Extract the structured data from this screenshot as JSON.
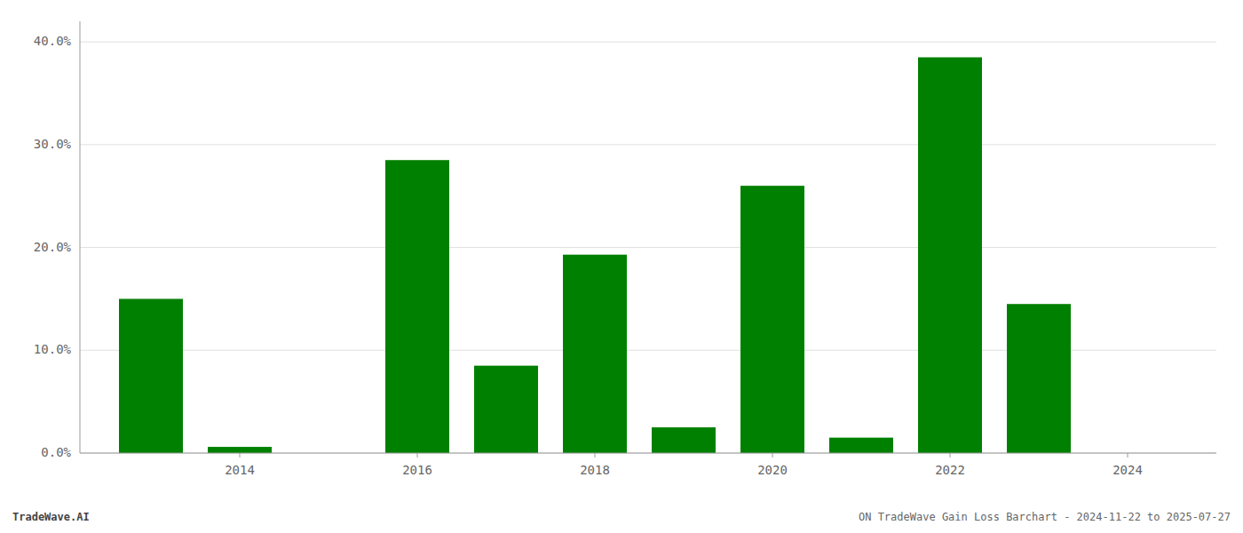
{
  "chart_data": {
    "type": "bar",
    "x": [
      2013,
      2014,
      2015,
      2016,
      2017,
      2018,
      2019,
      2020,
      2021,
      2022,
      2023,
      2024
    ],
    "values": [
      0.15,
      0.006,
      0.0,
      0.285,
      0.085,
      0.193,
      0.025,
      0.26,
      0.015,
      0.385,
      0.145,
      0.0
    ],
    "color": "#008000",
    "xlim": [
      2012.2,
      2025.0
    ],
    "xticks": [
      2014,
      2016,
      2018,
      2020,
      2022,
      2024
    ],
    "ylim": [
      0,
      0.42
    ],
    "yticks": [
      {
        "value": 0.0,
        "label": "0.0%"
      },
      {
        "value": 0.1,
        "label": "10.0%"
      },
      {
        "value": 0.2,
        "label": "20.0%"
      },
      {
        "value": 0.3,
        "label": "30.0%"
      },
      {
        "value": 0.4,
        "label": "40.0%"
      }
    ],
    "grid": true,
    "annotations": [
      "TradeWave.AI",
      "ON TradeWave Gain Loss Barchart - 2024-11-22 to 2025-07-27"
    ]
  }
}
